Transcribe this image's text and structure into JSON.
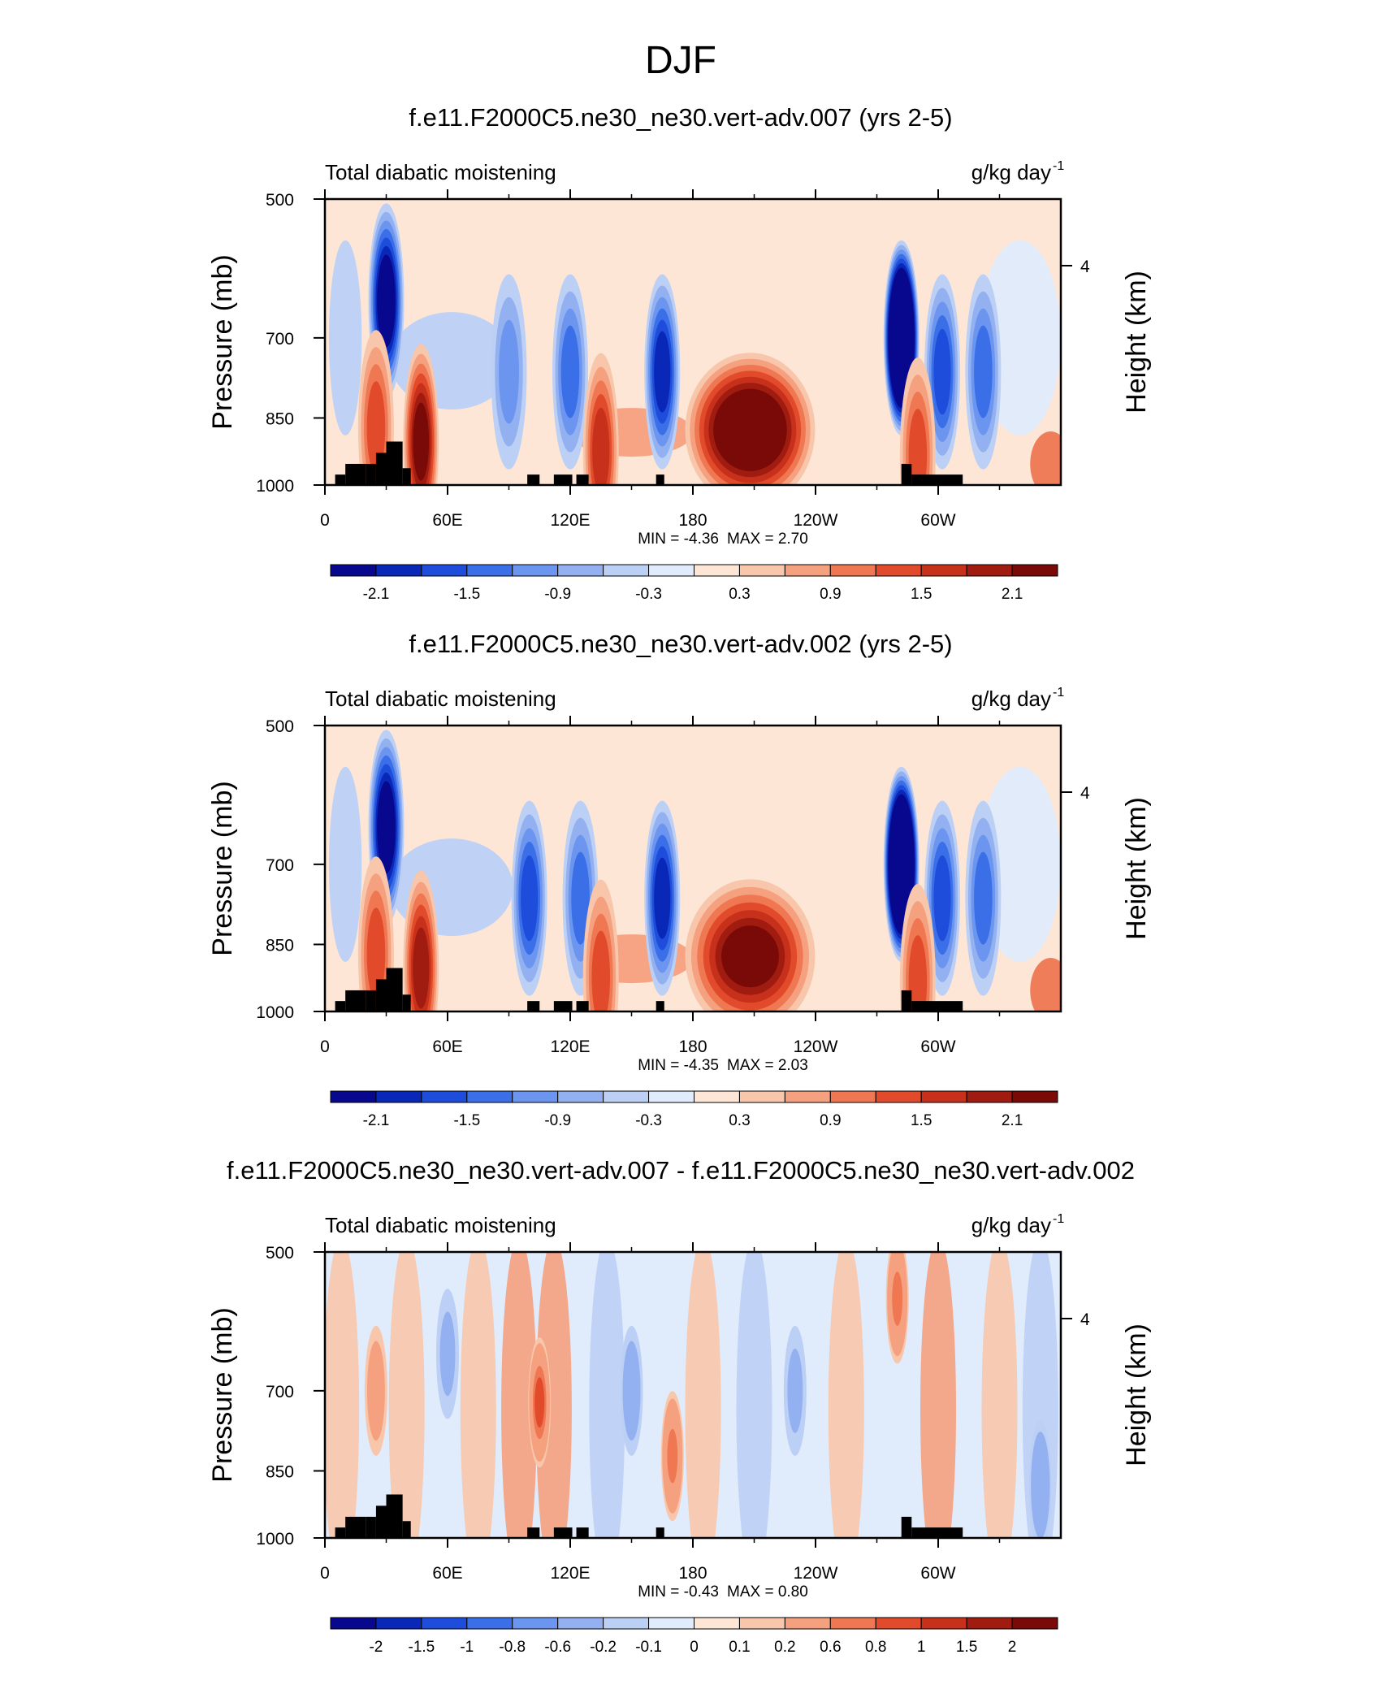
{
  "figure": {
    "title": "DJF",
    "panel_left_label": "Total diabatic moistening",
    "units_base": "g/kg day",
    "units_exp": "-1",
    "left_axis_label": "Pressure (mb)",
    "right_axis_label": "Height (km)"
  },
  "chart_data": [
    {
      "type": "heatmap",
      "title": "f.e11.F2000C5.ne30_ne30.vert-adv.007 (yrs 2-5)",
      "subtitle_left": "Total diabatic moistening",
      "subtitle_right": "g/kg day-1",
      "xlabel": "",
      "ylabel": "Pressure (mb)",
      "y2label": "Height (km)",
      "x_ticks": [
        "0",
        "60E",
        "120E",
        "180",
        "120W",
        "60W"
      ],
      "y_ticks": [
        "500",
        "700",
        "850",
        "1000"
      ],
      "y2_ticks": [
        "4"
      ],
      "y_reversed": true,
      "min_label": "MIN =  -4.36",
      "max_label": "MAX =   2.70",
      "colorbar_labels": [
        "-2.1",
        "-1.5",
        "-0.9",
        "-0.3",
        "0.3",
        "0.9",
        "1.5",
        "2.1"
      ],
      "features": [
        {
          "kind": "min",
          "lon": 30,
          "p": 640,
          "value": -2.4
        },
        {
          "kind": "min",
          "lon": 165,
          "p": 760,
          "value": -1.9
        },
        {
          "kind": "min",
          "lon": 90,
          "p": 760,
          "value": -1.0
        },
        {
          "kind": "min",
          "lon": 120,
          "p": 760,
          "value": -1.1
        },
        {
          "kind": "min",
          "lon": 282,
          "p": 700,
          "value": -4.36
        },
        {
          "kind": "min",
          "lon": 302,
          "p": 760,
          "value": -1.6
        },
        {
          "kind": "min",
          "lon": 322,
          "p": 760,
          "value": -1.1
        },
        {
          "kind": "max",
          "lon": 208,
          "p": 875,
          "value": 2.7
        },
        {
          "kind": "max",
          "lon": 47,
          "p": 900,
          "value": 2.0
        },
        {
          "kind": "max",
          "lon": 25,
          "p": 870,
          "value": 1.2
        },
        {
          "kind": "max",
          "lon": 135,
          "p": 920,
          "value": 1.4
        },
        {
          "kind": "max",
          "lon": 290,
          "p": 930,
          "value": 1.3
        }
      ]
    },
    {
      "type": "heatmap",
      "title": "f.e11.F2000C5.ne30_ne30.vert-adv.002 (yrs 2-5)",
      "subtitle_left": "Total diabatic moistening",
      "subtitle_right": "g/kg day-1",
      "xlabel": "",
      "ylabel": "Pressure (mb)",
      "y2label": "Height (km)",
      "x_ticks": [
        "0",
        "60E",
        "120E",
        "180",
        "120W",
        "60W"
      ],
      "y_ticks": [
        "500",
        "700",
        "850",
        "1000"
      ],
      "y2_ticks": [
        "4"
      ],
      "y_reversed": true,
      "min_label": "MIN =  -4.35",
      "max_label": "MAX =   2.03",
      "colorbar_labels": [
        "-2.1",
        "-1.5",
        "-0.9",
        "-0.3",
        "0.3",
        "0.9",
        "1.5",
        "2.1"
      ],
      "features": [
        {
          "kind": "min",
          "lon": 30,
          "p": 640,
          "value": -2.3
        },
        {
          "kind": "min",
          "lon": 165,
          "p": 760,
          "value": -1.9
        },
        {
          "kind": "min",
          "lon": 100,
          "p": 760,
          "value": -1.4
        },
        {
          "kind": "min",
          "lon": 125,
          "p": 760,
          "value": -1.3
        },
        {
          "kind": "min",
          "lon": 282,
          "p": 700,
          "value": -4.35
        },
        {
          "kind": "min",
          "lon": 302,
          "p": 760,
          "value": -1.6
        },
        {
          "kind": "min",
          "lon": 322,
          "p": 760,
          "value": -1.1
        },
        {
          "kind": "max",
          "lon": 208,
          "p": 875,
          "value": 2.03
        },
        {
          "kind": "max",
          "lon": 47,
          "p": 900,
          "value": 1.9
        },
        {
          "kind": "max",
          "lon": 25,
          "p": 870,
          "value": 1.1
        },
        {
          "kind": "max",
          "lon": 135,
          "p": 920,
          "value": 1.3
        },
        {
          "kind": "max",
          "lon": 290,
          "p": 930,
          "value": 1.2
        }
      ]
    },
    {
      "type": "heatmap",
      "title": "f.e11.F2000C5.ne30_ne30.vert-adv.007 - f.e11.F2000C5.ne30_ne30.vert-adv.002",
      "subtitle_left": "Total diabatic moistening",
      "subtitle_right": "g/kg day-1",
      "xlabel": "",
      "ylabel": "Pressure (mb)",
      "y2label": "Height (km)",
      "x_ticks": [
        "0",
        "60E",
        "120E",
        "180",
        "120W",
        "60W"
      ],
      "y_ticks": [
        "500",
        "700",
        "850",
        "1000"
      ],
      "y2_ticks": [
        "4"
      ],
      "y_reversed": true,
      "min_label": "MIN =  -0.43",
      "max_label": "MAX =    0.80",
      "colorbar_labels": [
        "-2",
        "-1.5",
        "-1",
        "-0.8",
        "-0.6",
        "-0.2",
        "-0.1",
        "0",
        "0.1",
        "0.2",
        "0.6",
        "0.8",
        "1",
        "1.5",
        "2"
      ],
      "features": [
        {
          "kind": "max",
          "lon": 105,
          "p": 720,
          "value": 0.8
        },
        {
          "kind": "max",
          "lon": 170,
          "p": 820,
          "value": 0.6
        },
        {
          "kind": "max",
          "lon": 25,
          "p": 700,
          "value": 0.3
        },
        {
          "kind": "max",
          "lon": 280,
          "p": 560,
          "value": 0.6
        },
        {
          "kind": "min",
          "lon": 60,
          "p": 640,
          "value": -0.2
        },
        {
          "kind": "min",
          "lon": 150,
          "p": 700,
          "value": -0.3
        },
        {
          "kind": "min",
          "lon": 230,
          "p": 700,
          "value": -0.2
        },
        {
          "kind": "min",
          "lon": 350,
          "p": 880,
          "value": -0.43
        }
      ]
    }
  ],
  "colors": {
    "sequential_blue_red": [
      "#08088f",
      "#0a28b8",
      "#1f4ddb",
      "#3a6fe8",
      "#6b95ee",
      "#93b1f1",
      "#bcd0f6",
      "#e0ebfb",
      "#fde6d6",
      "#f8c7ab",
      "#f5a07e",
      "#ef7752",
      "#e14b2b",
      "#c7311b",
      "#a01c10",
      "#7a0a07"
    ],
    "terrain": "#000000"
  }
}
